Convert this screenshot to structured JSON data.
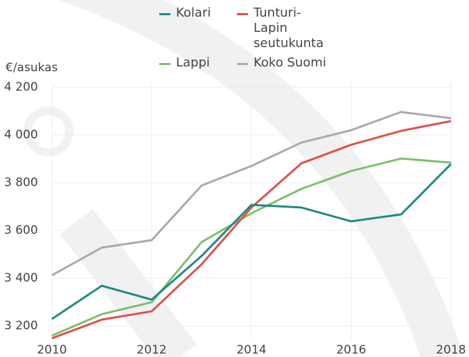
{
  "chart_data": {
    "type": "line",
    "y_label": "€/asukas",
    "x": [
      2010,
      2011,
      2012,
      2013,
      2014,
      2015,
      2016,
      2017,
      2018
    ],
    "series": [
      {
        "name": "Kolari",
        "color": "#1f8a84",
        "values": [
          3229,
          3368,
          3310,
          3493,
          3707,
          3696,
          3638,
          3667,
          3878
        ]
      },
      {
        "name": "Tunturi-Lapin seutukunta",
        "color": "#e0504a",
        "values": [
          3148,
          3226,
          3261,
          3458,
          3696,
          3881,
          3959,
          4017,
          4058
        ]
      },
      {
        "name": "Lappi",
        "color": "#7cc06b",
        "values": [
          3159,
          3249,
          3299,
          3551,
          3672,
          3774,
          3849,
          3901,
          3884
        ]
      },
      {
        "name": "Koko Suomi",
        "color": "#aaaaaa",
        "values": [
          3412,
          3528,
          3559,
          3788,
          3870,
          3968,
          4020,
          4096,
          4070
        ]
      }
    ],
    "xlim": [
      2010,
      2018
    ],
    "xticks": [
      2010,
      2012,
      2014,
      2016,
      2018
    ],
    "ylim": [
      3140,
      4225
    ],
    "yticks": [
      {
        "value": 3200,
        "label": "3 200"
      },
      {
        "value": 3400,
        "label": "3 400"
      },
      {
        "value": 3600,
        "label": "3 600"
      },
      {
        "value": 3800,
        "label": "3 800"
      },
      {
        "value": 4000,
        "label": "4 000"
      },
      {
        "value": 4200,
        "label": "4 200"
      }
    ],
    "grid": true
  }
}
